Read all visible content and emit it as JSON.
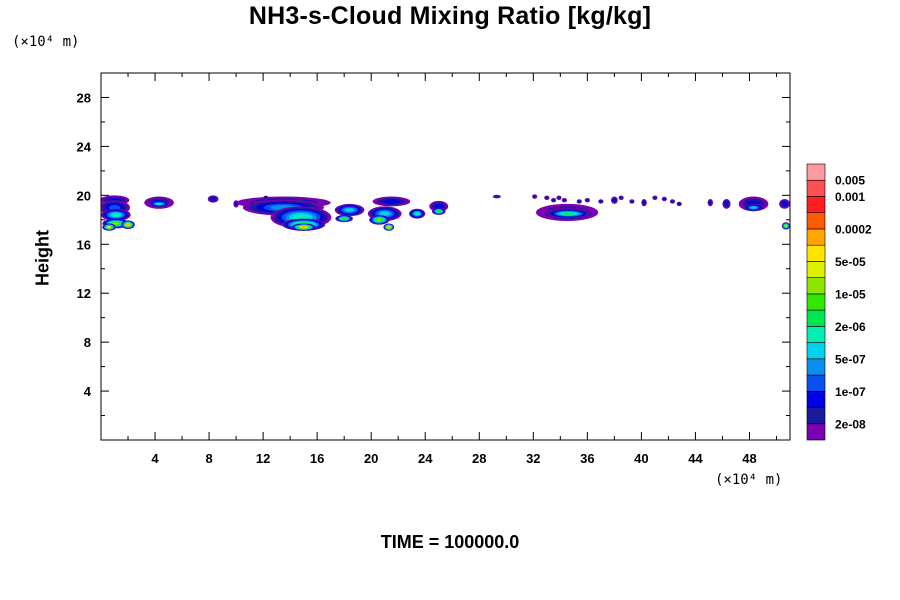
{
  "chart_data": {
    "type": "heatmap",
    "title": "NH3-s-Cloud Mixing Ratio [kg/kg]",
    "ylabel": "Height",
    "y_unit": "(×10⁴ m)",
    "x_unit": "(×10⁴ m)",
    "footer": "TIME = 100000.0",
    "xlim": [
      0,
      51
    ],
    "ylim": [
      0,
      30
    ],
    "x_ticks": [
      4,
      8,
      12,
      16,
      20,
      24,
      28,
      32,
      36,
      40,
      44,
      48
    ],
    "y_ticks": [
      4,
      8,
      12,
      16,
      20,
      24,
      28
    ],
    "colorbar": {
      "colors": [
        "#7b00b4",
        "#1a1a9c",
        "#0000e6",
        "#0a4ff0",
        "#0a8ff0",
        "#00d2f0",
        "#00f0b4",
        "#00e650",
        "#32e600",
        "#8ce600",
        "#dcf000",
        "#ffe600",
        "#ffa500",
        "#ff5a00",
        "#ff1e1e",
        "#ff5050",
        "#ff9aa0"
      ],
      "labels": [
        "2e-08",
        "1e-07",
        "5e-07",
        "2e-06",
        "1e-05",
        "5e-05",
        "0.0002",
        "0.001",
        "0.005"
      ],
      "label_level_index": [
        1,
        3,
        5,
        7,
        9,
        11,
        13,
        15,
        16
      ]
    },
    "cloud_blobs": [
      {
        "x": 1.0,
        "y": 19.6,
        "w": 2.2,
        "h": 0.8,
        "level": 2
      },
      {
        "x": 1.0,
        "y": 19.0,
        "w": 2.3,
        "h": 1.2,
        "level": 3
      },
      {
        "x": 1.1,
        "y": 18.4,
        "w": 2.2,
        "h": 1.0,
        "level": 6
      },
      {
        "x": 1.1,
        "y": 17.7,
        "w": 2.0,
        "h": 0.8,
        "level": 9
      },
      {
        "x": 0.6,
        "y": 17.4,
        "w": 1.0,
        "h": 0.6,
        "level": 11
      },
      {
        "x": 2.0,
        "y": 17.6,
        "w": 1.0,
        "h": 0.7,
        "level": 12
      },
      {
        "x": 4.3,
        "y": 19.4,
        "w": 2.2,
        "h": 1.0,
        "level": 2
      },
      {
        "x": 4.3,
        "y": 19.3,
        "w": 1.5,
        "h": 0.5,
        "level": 6
      },
      {
        "x": 8.3,
        "y": 19.7,
        "w": 0.8,
        "h": 0.6,
        "level": 2
      },
      {
        "x": 10.0,
        "y": 19.3,
        "w": 0.4,
        "h": 0.6,
        "level": 2
      },
      {
        "x": 13.5,
        "y": 19.4,
        "w": 7.0,
        "h": 1.0,
        "level": 2
      },
      {
        "x": 13.5,
        "y": 19.0,
        "w": 6.0,
        "h": 1.3,
        "level": 4
      },
      {
        "x": 14.8,
        "y": 18.2,
        "w": 4.5,
        "h": 1.8,
        "level": 6
      },
      {
        "x": 15.0,
        "y": 17.6,
        "w": 3.2,
        "h": 1.0,
        "level": 9
      },
      {
        "x": 15.0,
        "y": 17.4,
        "w": 1.8,
        "h": 0.6,
        "level": 12
      },
      {
        "x": 18.4,
        "y": 18.8,
        "w": 2.2,
        "h": 1.0,
        "level": 5
      },
      {
        "x": 18.0,
        "y": 18.1,
        "w": 1.3,
        "h": 0.6,
        "level": 8
      },
      {
        "x": 21.5,
        "y": 19.5,
        "w": 2.8,
        "h": 0.8,
        "level": 2
      },
      {
        "x": 21.0,
        "y": 18.5,
        "w": 2.5,
        "h": 1.2,
        "level": 5
      },
      {
        "x": 20.6,
        "y": 18.0,
        "w": 1.5,
        "h": 0.8,
        "level": 9
      },
      {
        "x": 21.3,
        "y": 17.4,
        "w": 0.8,
        "h": 0.6,
        "level": 12
      },
      {
        "x": 23.4,
        "y": 18.5,
        "w": 1.2,
        "h": 0.8,
        "level": 6
      },
      {
        "x": 25.0,
        "y": 19.1,
        "w": 1.4,
        "h": 0.9,
        "level": 2
      },
      {
        "x": 25.0,
        "y": 18.7,
        "w": 1.0,
        "h": 0.6,
        "level": 8
      },
      {
        "x": 29.3,
        "y": 19.9,
        "w": 0.6,
        "h": 0.3,
        "level": 1
      },
      {
        "x": 34.5,
        "y": 18.6,
        "w": 4.6,
        "h": 1.4,
        "level": 2
      },
      {
        "x": 34.6,
        "y": 18.5,
        "w": 3.9,
        "h": 1.0,
        "level": 5
      },
      {
        "x": 34.6,
        "y": 18.5,
        "w": 3.2,
        "h": 0.7,
        "level": 7
      },
      {
        "x": 38.0,
        "y": 19.6,
        "w": 0.5,
        "h": 0.6,
        "level": 2
      },
      {
        "x": 40.2,
        "y": 19.4,
        "w": 0.4,
        "h": 0.6,
        "level": 2
      },
      {
        "x": 45.1,
        "y": 19.4,
        "w": 0.4,
        "h": 0.6,
        "level": 2
      },
      {
        "x": 46.3,
        "y": 19.3,
        "w": 0.6,
        "h": 0.8,
        "level": 2
      },
      {
        "x": 48.3,
        "y": 19.3,
        "w": 2.2,
        "h": 1.2,
        "level": 2
      },
      {
        "x": 48.3,
        "y": 19.0,
        "w": 1.5,
        "h": 0.6,
        "level": 5
      },
      {
        "x": 50.6,
        "y": 19.3,
        "w": 0.8,
        "h": 0.8,
        "level": 2
      },
      {
        "x": 50.7,
        "y": 17.5,
        "w": 0.6,
        "h": 0.6,
        "level": 10
      }
    ],
    "cloud_specks": [
      [
        32.1,
        19.9,
        1
      ],
      [
        33.0,
        19.8,
        1
      ],
      [
        33.5,
        19.6,
        2
      ],
      [
        33.9,
        19.8,
        1
      ],
      [
        34.3,
        19.6,
        2
      ],
      [
        35.4,
        19.5,
        2
      ],
      [
        36.0,
        19.6,
        1
      ],
      [
        37.0,
        19.5,
        2
      ],
      [
        38.5,
        19.8,
        1
      ],
      [
        39.3,
        19.5,
        2
      ],
      [
        41.0,
        19.8,
        1
      ],
      [
        41.7,
        19.7,
        2
      ],
      [
        42.3,
        19.5,
        1
      ],
      [
        42.8,
        19.3,
        2
      ],
      [
        11.2,
        19.3,
        2
      ],
      [
        12.2,
        19.8,
        1
      ]
    ]
  }
}
